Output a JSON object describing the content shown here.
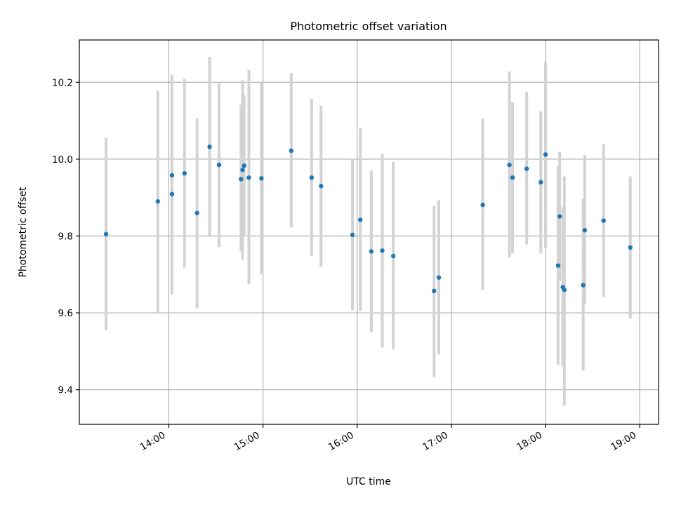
{
  "chart_data": {
    "type": "scatter",
    "title": "Photometric offset variation",
    "xlabel": "UTC time",
    "ylabel": "Photometric offset",
    "xlim": [
      "13:03",
      "19:12"
    ],
    "ylim": [
      9.31,
      10.31
    ],
    "xticks": [
      "14:00",
      "15:00",
      "16:00",
      "17:00",
      "18:00",
      "19:00"
    ],
    "yticks": [
      9.4,
      9.6,
      9.8,
      10.0,
      10.2
    ],
    "grid": true,
    "colors": {
      "point": "#1f77b4",
      "errorbar": "#d3d3d3"
    },
    "points": [
      {
        "t": "13:20",
        "y": 9.805,
        "lo": 9.555,
        "hi": 10.055
      },
      {
        "t": "13:53",
        "y": 9.89,
        "lo": 9.6,
        "hi": 10.178
      },
      {
        "t": "14:02",
        "y": 9.958,
        "lo": 9.7,
        "hi": 10.22
      },
      {
        "t": "14:02",
        "y": 9.909,
        "lo": 9.648,
        "hi": 10.17
      },
      {
        "t": "14:10",
        "y": 9.963,
        "lo": 9.718,
        "hi": 10.208
      },
      {
        "t": "14:18",
        "y": 9.86,
        "lo": 9.612,
        "hi": 10.106
      },
      {
        "t": "14:26",
        "y": 10.032,
        "lo": 9.798,
        "hi": 10.266
      },
      {
        "t": "14:32",
        "y": 9.985,
        "lo": 9.771,
        "hi": 10.201
      },
      {
        "t": "14:46",
        "y": 9.948,
        "lo": 9.76,
        "hi": 10.142
      },
      {
        "t": "14:47",
        "y": 9.972,
        "lo": 9.738,
        "hi": 10.205
      },
      {
        "t": "14:48",
        "y": 9.983,
        "lo": 9.8,
        "hi": 10.166
      },
      {
        "t": "14:51",
        "y": 9.952,
        "lo": 9.675,
        "hi": 10.232
      },
      {
        "t": "14:59",
        "y": 9.95,
        "lo": 9.7,
        "hi": 10.2
      },
      {
        "t": "15:18",
        "y": 10.022,
        "lo": 9.822,
        "hi": 10.224
      },
      {
        "t": "15:31",
        "y": 9.952,
        "lo": 9.748,
        "hi": 10.157
      },
      {
        "t": "15:37",
        "y": 9.93,
        "lo": 9.72,
        "hi": 10.139
      },
      {
        "t": "15:57",
        "y": 9.803,
        "lo": 9.607,
        "hi": 10.0
      },
      {
        "t": "16:02",
        "y": 9.842,
        "lo": 9.605,
        "hi": 10.08
      },
      {
        "t": "16:09",
        "y": 9.76,
        "lo": 9.55,
        "hi": 9.97
      },
      {
        "t": "16:16",
        "y": 9.762,
        "lo": 9.51,
        "hi": 10.014
      },
      {
        "t": "16:23",
        "y": 9.748,
        "lo": 9.505,
        "hi": 9.993
      },
      {
        "t": "16:49",
        "y": 9.657,
        "lo": 9.433,
        "hi": 9.878
      },
      {
        "t": "16:52",
        "y": 9.692,
        "lo": 9.492,
        "hi": 9.893
      },
      {
        "t": "17:20",
        "y": 9.881,
        "lo": 9.659,
        "hi": 10.105
      },
      {
        "t": "17:37",
        "y": 9.985,
        "lo": 9.745,
        "hi": 10.228
      },
      {
        "t": "17:39",
        "y": 9.952,
        "lo": 9.755,
        "hi": 10.148
      },
      {
        "t": "17:48",
        "y": 9.975,
        "lo": 9.778,
        "hi": 10.175
      },
      {
        "t": "17:57",
        "y": 9.94,
        "lo": 9.755,
        "hi": 10.125
      },
      {
        "t": "18:00",
        "y": 10.012,
        "lo": 9.77,
        "hi": 10.253
      },
      {
        "t": "18:08",
        "y": 9.723,
        "lo": 9.465,
        "hi": 9.981
      },
      {
        "t": "18:09",
        "y": 9.851,
        "lo": 9.683,
        "hi": 10.019
      },
      {
        "t": "18:11",
        "y": 9.667,
        "lo": 9.46,
        "hi": 9.875
      },
      {
        "t": "18:12",
        "y": 9.66,
        "lo": 9.358,
        "hi": 9.955
      },
      {
        "t": "18:24",
        "y": 9.672,
        "lo": 9.45,
        "hi": 9.897
      },
      {
        "t": "18:25",
        "y": 9.815,
        "lo": 9.623,
        "hi": 10.011
      },
      {
        "t": "18:37",
        "y": 9.84,
        "lo": 9.641,
        "hi": 10.039
      },
      {
        "t": "18:54",
        "y": 9.77,
        "lo": 9.585,
        "hi": 9.955
      }
    ]
  }
}
